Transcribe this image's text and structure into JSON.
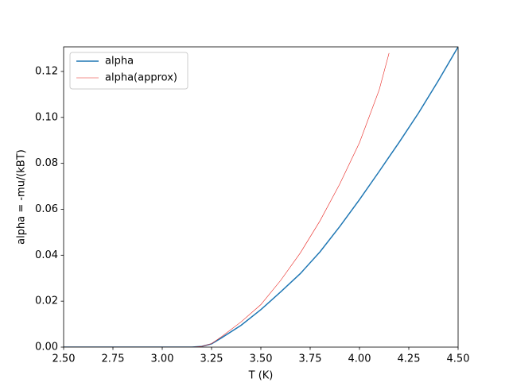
{
  "chart_data": {
    "type": "line",
    "xlabel": "T (K)",
    "ylabel": "alpha = -mu/(kBT)",
    "x": [
      2.5,
      3.0,
      3.15,
      3.2,
      3.25,
      3.3,
      3.4,
      3.5,
      3.6,
      3.7,
      3.8,
      3.9,
      4.0,
      4.1,
      4.15,
      4.2,
      4.3,
      4.4,
      4.5
    ],
    "series": [
      {
        "name": "alpha",
        "color": "#1f77b4",
        "width": 1.5,
        "values": [
          0,
          0,
          0,
          0.0003,
          0.0014,
          0.004,
          0.0095,
          0.0163,
          0.024,
          0.032,
          0.0415,
          0.0525,
          0.0642,
          0.0765,
          0.0828,
          0.089,
          0.102,
          0.116,
          0.1307
        ]
      },
      {
        "name": "alpha(approx)",
        "color": "#e8231e",
        "width": 0.6,
        "values": [
          0,
          0,
          0,
          0.0003,
          0.0015,
          0.0045,
          0.011,
          0.0185,
          0.029,
          0.041,
          0.055,
          0.071,
          0.089,
          0.112,
          0.128,
          null,
          null,
          null,
          null
        ]
      }
    ],
    "xlim": [
      2.5,
      4.5
    ],
    "xticks": [
      {
        "value": 2.5,
        "label": "2.50"
      },
      {
        "value": 2.75,
        "label": "2.75"
      },
      {
        "value": 3.0,
        "label": "3.00"
      },
      {
        "value": 3.25,
        "label": "3.25"
      },
      {
        "value": 3.5,
        "label": "3.50"
      },
      {
        "value": 3.75,
        "label": "3.75"
      },
      {
        "value": 4.0,
        "label": "4.00"
      },
      {
        "value": 4.25,
        "label": "4.25"
      },
      {
        "value": 4.5,
        "label": "4.50"
      }
    ],
    "ylim": [
      0,
      0.1307
    ],
    "yticks": [
      {
        "value": 0,
        "label": "0.00"
      },
      {
        "value": 0.02,
        "label": "0.02"
      },
      {
        "value": 0.04,
        "label": "0.04"
      },
      {
        "value": 0.06,
        "label": "0.06"
      },
      {
        "value": 0.08,
        "label": "0.08"
      },
      {
        "value": 0.1,
        "label": "0.10"
      },
      {
        "value": 0.12,
        "label": "0.12"
      }
    ],
    "grid": false,
    "legend": "upper left"
  }
}
